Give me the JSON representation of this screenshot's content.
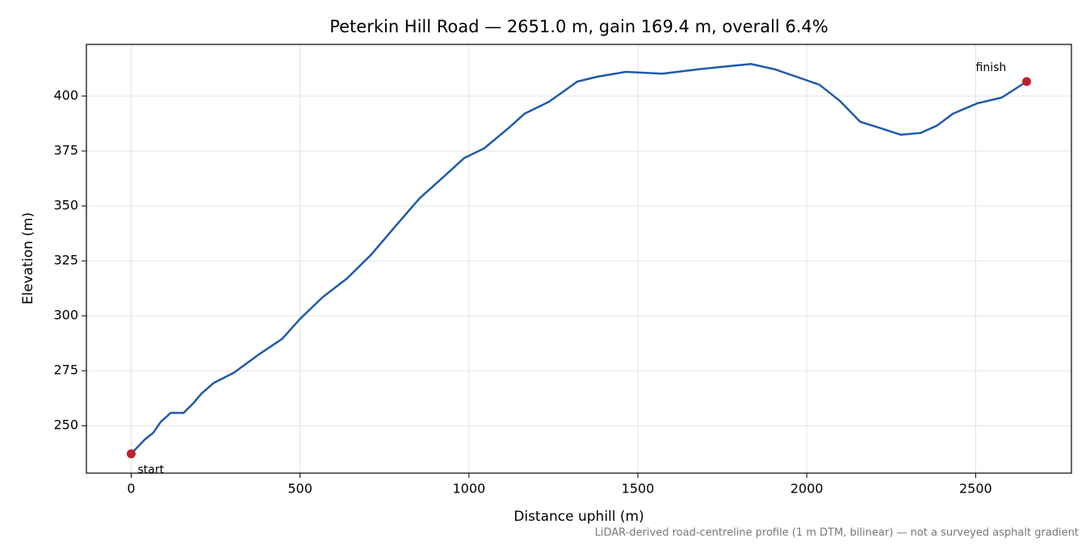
{
  "chart_data": {
    "type": "line",
    "title": "Peterkin Hill Road — 2651.0 m, gain 169.4 m, overall 6.4%",
    "x_label": "Distance uphill (m)",
    "y_label": "Elevation (m)",
    "note": "LiDAR-derived road-centreline profile (1 m DTM, bilinear) — not a surveyed asphalt gradient",
    "x": [
      0,
      41,
      65,
      88,
      117,
      155,
      184,
      208,
      244,
      304,
      376,
      447,
      500,
      567,
      639,
      711,
      782,
      854,
      926,
      986,
      1045,
      1117,
      1165,
      1237,
      1321,
      1380,
      1464,
      1572,
      1691,
      1835,
      1907,
      1990,
      2038,
      2098,
      2158,
      2218,
      2278,
      2337,
      2385,
      2433,
      2505,
      2577,
      2651
    ],
    "series": [
      {
        "color": "#1f5aab",
        "values": [
          237.2,
          243.8,
          246.7,
          251.8,
          255.8,
          255.8,
          260.2,
          264.6,
          269.4,
          274.1,
          282.2,
          289.5,
          298.6,
          308.5,
          317.0,
          327.9,
          340.7,
          353.5,
          363.4,
          371.8,
          376.2,
          385.4,
          392.0,
          397.4,
          406.6,
          408.8,
          411.0,
          410.2,
          412.4,
          414.6,
          412.1,
          407.7,
          405.1,
          397.8,
          388.3,
          385.4,
          382.4,
          383.2,
          386.5,
          392.0,
          396.7,
          399.3,
          406.6
        ]
      }
    ],
    "annotations": [
      {
        "text": "start",
        "x": 0,
        "y": 237.2
      },
      {
        "text": "finish",
        "x": 2651,
        "y": 406.6
      }
    ],
    "marker_color": "#c0202e",
    "xlim": [
      -132.55,
      2783.55
    ],
    "ylim": [
      228.4,
      423.5
    ],
    "xticks": [
      0,
      500,
      1000,
      1500,
      2000,
      2500
    ],
    "yticks": [
      250,
      275,
      300,
      325,
      350,
      375,
      400
    ],
    "grid": true
  }
}
